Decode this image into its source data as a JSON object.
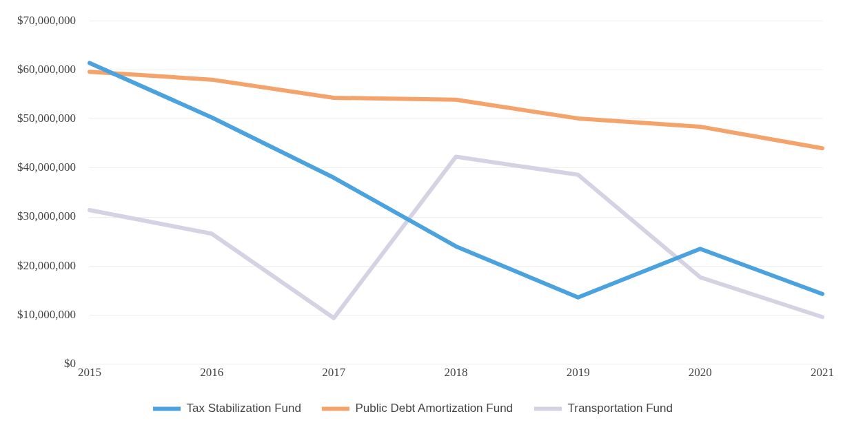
{
  "chart_data": {
    "type": "line",
    "categories": [
      "2015",
      "2016",
      "2017",
      "2018",
      "2019",
      "2020",
      "2021"
    ],
    "series": [
      {
        "name": "Tax Stabilization Fund",
        "color": "#4aa3df",
        "values": [
          61400000,
          50300000,
          38000000,
          24000000,
          13600000,
          23500000,
          14300000
        ]
      },
      {
        "name": "Public Debt Amortization Fund",
        "color": "#f4a46a",
        "values": [
          59600000,
          58000000,
          54300000,
          53900000,
          50100000,
          48400000,
          44000000
        ]
      },
      {
        "name": "Transportation Fund",
        "color": "#d5d3e3",
        "values": [
          31400000,
          26600000,
          9400000,
          42300000,
          38600000,
          17700000,
          9600000
        ]
      }
    ],
    "ylim": [
      0,
      70000000
    ],
    "yticks": [
      {
        "value": 0,
        "label": "$0"
      },
      {
        "value": 10000000,
        "label": "$10,000,000"
      },
      {
        "value": 20000000,
        "label": "$20,000,000"
      },
      {
        "value": 30000000,
        "label": "$30,000,000"
      },
      {
        "value": 40000000,
        "label": "$40,000,000"
      },
      {
        "value": 50000000,
        "label": "$50,000,000"
      },
      {
        "value": 60000000,
        "label": "$60,000,000"
      },
      {
        "value": 70000000,
        "label": "$70,000,000"
      }
    ],
    "grid": "y",
    "legend": "bottom",
    "marker": "none",
    "line_style": "solid"
  }
}
